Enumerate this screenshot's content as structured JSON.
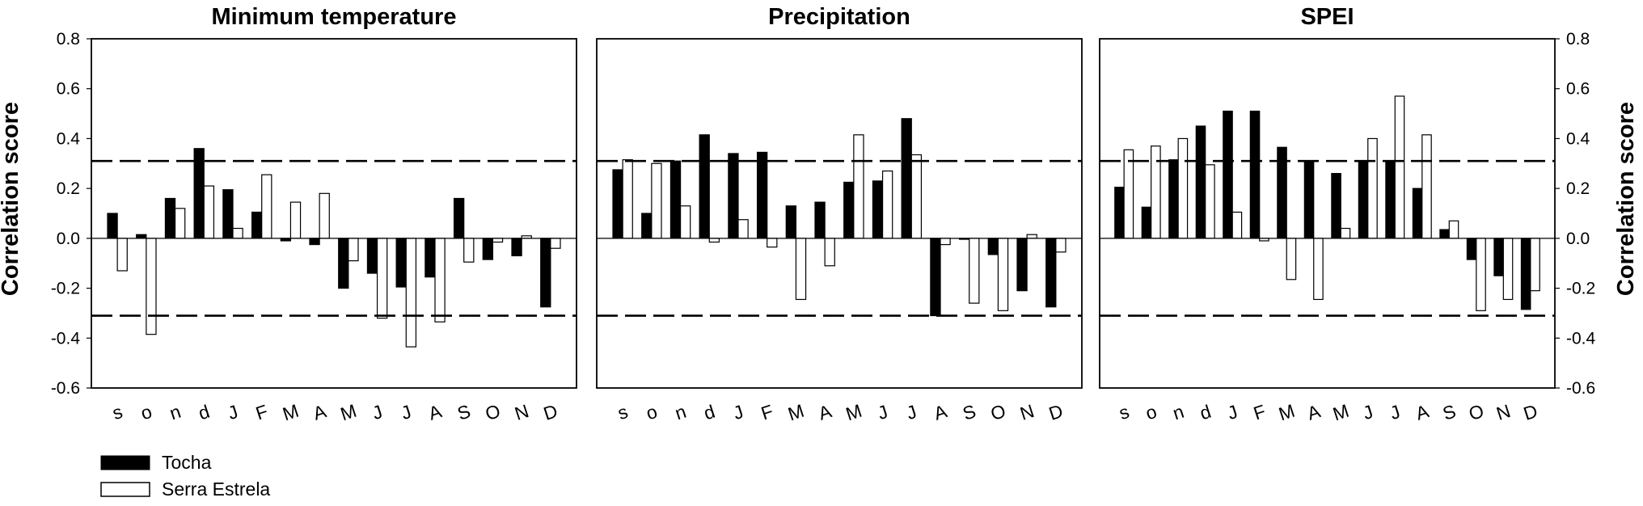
{
  "ylabel": "Correlation score",
  "legend": [
    {
      "name": "Tocha",
      "color": "#000000"
    },
    {
      "name": "Serra Estrela",
      "color": "#ffffff"
    }
  ],
  "chart_data": [
    {
      "type": "bar",
      "title": "Minimum temperature",
      "ylabel": "Correlation score",
      "ylim": [
        -0.6,
        0.8
      ],
      "yticks": [
        "0.8",
        "0.6",
        "0.4",
        "0.2",
        "0.0",
        "-0.2",
        "-0.4",
        "-0.6"
      ],
      "significance_lines": [
        0.31,
        -0.31
      ],
      "categories": [
        "s",
        "o",
        "n",
        "d",
        "J",
        "F",
        "M",
        "A",
        "M",
        "J",
        "J",
        "A",
        "S",
        "O",
        "N",
        "D"
      ],
      "series": [
        {
          "name": "Tocha",
          "color": "#000000",
          "values": [
            0.1,
            0.015,
            0.16,
            0.36,
            0.195,
            0.105,
            -0.01,
            -0.025,
            -0.2,
            -0.14,
            -0.195,
            -0.155,
            0.16,
            -0.085,
            -0.07,
            -0.275
          ]
        },
        {
          "name": "Serra Estrela",
          "color": "#ffffff",
          "values": [
            -0.13,
            -0.385,
            0.12,
            0.21,
            0.04,
            0.255,
            0.145,
            0.18,
            -0.09,
            -0.32,
            -0.435,
            -0.335,
            -0.095,
            -0.015,
            0.01,
            -0.04
          ]
        }
      ]
    },
    {
      "type": "bar",
      "title": "Precipitation",
      "ylim": [
        -0.6,
        0.8
      ],
      "significance_lines": [
        0.31,
        -0.31
      ],
      "categories": [
        "s",
        "o",
        "n",
        "d",
        "J",
        "F",
        "M",
        "A",
        "M",
        "J",
        "J",
        "A",
        "S",
        "O",
        "N",
        "D"
      ],
      "series": [
        {
          "name": "Tocha",
          "color": "#000000",
          "values": [
            0.275,
            0.1,
            0.31,
            0.415,
            0.34,
            0.345,
            0.13,
            0.145,
            0.225,
            0.23,
            0.48,
            -0.31,
            0.0,
            -0.065,
            -0.21,
            -0.275
          ]
        },
        {
          "name": "Serra Estrela",
          "color": "#ffffff",
          "values": [
            0.315,
            0.3,
            0.13,
            -0.015,
            0.075,
            -0.035,
            -0.245,
            -0.11,
            0.415,
            0.27,
            0.335,
            -0.025,
            -0.26,
            -0.29,
            0.015,
            -0.055
          ]
        }
      ]
    },
    {
      "type": "bar",
      "title": "SPEI",
      "ylabel": "Correlation score",
      "ylim": [
        -0.6,
        0.8
      ],
      "yticks": [
        "0.8",
        "0.6",
        "0.4",
        "0.2",
        "0.0",
        "-0.2",
        "-0.4",
        "-0.6"
      ],
      "significance_lines": [
        0.31,
        -0.31
      ],
      "categories": [
        "s",
        "o",
        "n",
        "d",
        "J",
        "F",
        "M",
        "A",
        "M",
        "J",
        "J",
        "A",
        "S",
        "O",
        "N",
        "D"
      ],
      "series": [
        {
          "name": "Tocha",
          "color": "#000000",
          "values": [
            0.205,
            0.125,
            0.315,
            0.45,
            0.51,
            0.51,
            0.365,
            0.305,
            0.26,
            0.305,
            0.31,
            0.2,
            0.035,
            -0.085,
            -0.15,
            -0.285
          ]
        },
        {
          "name": "Serra Estrela",
          "color": "#ffffff",
          "values": [
            0.355,
            0.37,
            0.4,
            0.295,
            0.105,
            -0.01,
            -0.165,
            -0.245,
            0.04,
            0.4,
            0.57,
            0.415,
            0.07,
            -0.29,
            -0.245,
            -0.21
          ]
        }
      ]
    }
  ]
}
